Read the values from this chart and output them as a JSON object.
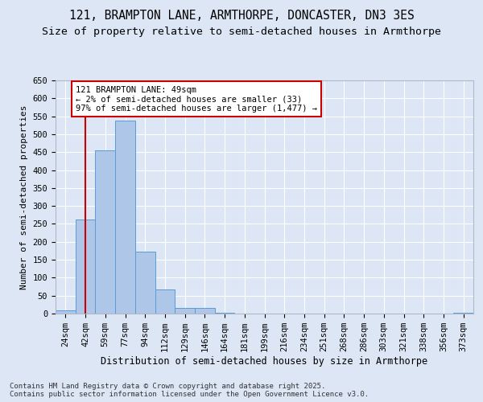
{
  "title1": "121, BRAMPTON LANE, ARMTHORPE, DONCASTER, DN3 3ES",
  "title2": "Size of property relative to semi-detached houses in Armthorpe",
  "xlabel": "Distribution of semi-detached houses by size in Armthorpe",
  "ylabel": "Number of semi-detached properties",
  "categories": [
    "24sqm",
    "42sqm",
    "59sqm",
    "77sqm",
    "94sqm",
    "112sqm",
    "129sqm",
    "146sqm",
    "164sqm",
    "181sqm",
    "199sqm",
    "216sqm",
    "234sqm",
    "251sqm",
    "268sqm",
    "286sqm",
    "303sqm",
    "321sqm",
    "338sqm",
    "356sqm",
    "373sqm"
  ],
  "values": [
    8,
    262,
    455,
    537,
    173,
    68,
    15,
    15,
    3,
    1,
    0,
    0,
    0,
    0,
    0,
    0,
    0,
    0,
    0,
    0,
    3
  ],
  "bar_color": "#aec6e8",
  "bar_edge_color": "#5b9bd5",
  "vline_x": 1,
  "vline_color": "#cc0000",
  "annotation_text": "121 BRAMPTON LANE: 49sqm\n← 2% of semi-detached houses are smaller (33)\n97% of semi-detached houses are larger (1,477) →",
  "annotation_box_color": "white",
  "annotation_box_edge_color": "#cc0000",
  "ylim": [
    0,
    650
  ],
  "yticks": [
    0,
    50,
    100,
    150,
    200,
    250,
    300,
    350,
    400,
    450,
    500,
    550,
    600,
    650
  ],
  "background_color": "#dce6f5",
  "plot_background_color": "#dce6f5",
  "grid_color": "#ffffff",
  "footer_text": "Contains HM Land Registry data © Crown copyright and database right 2025.\nContains public sector information licensed under the Open Government Licence v3.0.",
  "title1_fontsize": 10.5,
  "title2_fontsize": 9.5,
  "xlabel_fontsize": 8.5,
  "ylabel_fontsize": 8,
  "tick_fontsize": 7.5,
  "annotation_fontsize": 7.5,
  "footer_fontsize": 6.5
}
